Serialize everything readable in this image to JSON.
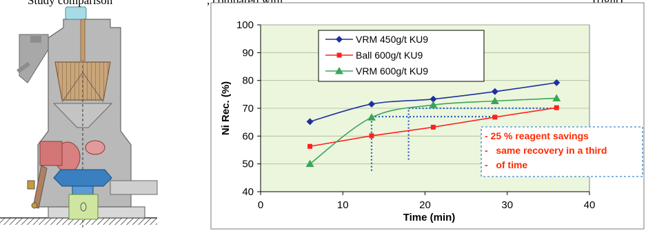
{
  "header_snippet": {
    "left": "Study comparison",
    "middle": ", compared with",
    "right": "(right)."
  },
  "mill_illustration": {
    "description_name": "vertical-roller-mill",
    "colors": {
      "shell": "#b9b9b9",
      "classifier": "#c9a57a",
      "roller": "#d98080",
      "table": "#3a7fc0",
      "gearbox": "#cfe6a0"
    }
  },
  "chart_data": {
    "type": "line",
    "xlabel": "Time (min)",
    "ylabel": "Ni Rec. (%)",
    "xlim": [
      0,
      40
    ],
    "ylim": [
      40,
      100
    ],
    "x_ticks": [
      "0",
      "10",
      "20",
      "30",
      "40"
    ],
    "y_ticks": [
      "40",
      "50",
      "60",
      "70",
      "80",
      "90",
      "100"
    ],
    "grid": true,
    "background": "#ecf6dc",
    "legend_position": "top-center",
    "series": [
      {
        "name": "VRM 450g/t KU9",
        "color": "#1f2fa0",
        "marker": "diamond",
        "smooth": true,
        "points": [
          [
            6,
            65.2
          ],
          [
            13.5,
            71.5
          ],
          [
            21,
            73.3
          ],
          [
            28.5,
            76.0
          ],
          [
            36,
            79.2
          ]
        ]
      },
      {
        "name": "Ball 600g/t KU9",
        "color": "#ff2020",
        "marker": "square",
        "smooth": false,
        "points": [
          [
            6,
            56.3
          ],
          [
            13.5,
            60.1
          ],
          [
            21,
            63.2
          ],
          [
            28.5,
            66.8
          ],
          [
            36,
            70.2
          ]
        ]
      },
      {
        "name": "VRM 600g/t KU9",
        "color": "#3aa55a",
        "marker": "triangle",
        "smooth": true,
        "points": [
          [
            6,
            50.0
          ],
          [
            13.5,
            66.7
          ],
          [
            21,
            71.2
          ],
          [
            28.5,
            72.6
          ],
          [
            36,
            73.6
          ]
        ]
      }
    ],
    "reference_lines": {
      "color": "#1f5fbf",
      "horizontal": [
        {
          "y": 67,
          "x_from": 13.5,
          "x_to": 28.5
        },
        {
          "y": 70,
          "x_from": 18,
          "x_to": 36
        }
      ],
      "vertical": [
        {
          "x": 13.5,
          "y_from": 47.5,
          "y_to": 67
        },
        {
          "x": 18,
          "y_from": 51.5,
          "y_to": 70
        }
      ]
    },
    "annotation": {
      "lines": [
        "- 25 % reagent savings",
        "-   same recovery in a third",
        "-   of time"
      ],
      "color": "#ff2a00",
      "border_color": "#5b9bd5"
    }
  }
}
